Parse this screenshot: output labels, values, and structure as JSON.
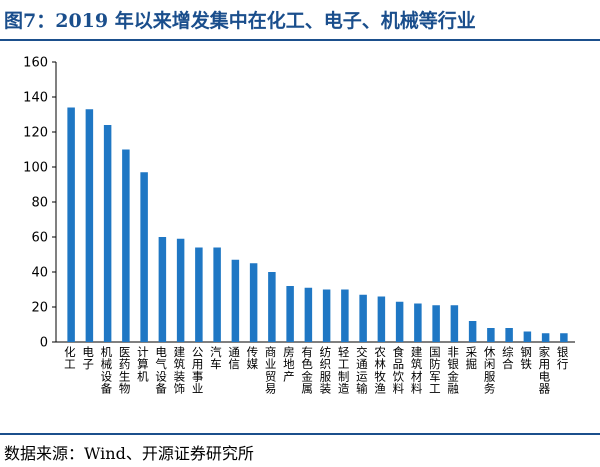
{
  "header": {
    "title": "图7：2019 年以来增发集中在化工、电子、机械等行业"
  },
  "footer": {
    "source": "数据来源：Wind、开源证券研究所"
  },
  "colors": {
    "bar": "#1f77c4",
    "title": "#1a4e8c",
    "rule": "#1b4f8c"
  },
  "chart_data": {
    "type": "bar",
    "categories": [
      "化工",
      "电子",
      "机械设备",
      "医药生物",
      "计算机",
      "电气设备",
      "建筑装饰",
      "公用事业",
      "汽车",
      "通信",
      "传媒",
      "商业贸易",
      "房地产",
      "有色金属",
      "纺织服装",
      "轻工制造",
      "交通运输",
      "农林牧渔",
      "食品饮料",
      "建筑材料",
      "国防军工",
      "非银金融",
      "采掘",
      "休闲服务",
      "综合",
      "钢铁",
      "家用电器",
      "银行"
    ],
    "values": [
      134,
      133,
      124,
      110,
      97,
      60,
      59,
      54,
      54,
      47,
      45,
      40,
      32,
      31,
      30,
      30,
      27,
      26,
      23,
      22,
      21,
      21,
      12,
      8,
      8,
      6,
      5,
      5
    ],
    "yticks": [
      0,
      20,
      40,
      60,
      80,
      100,
      120,
      140,
      160
    ],
    "ylim": [
      0,
      160
    ],
    "title": "",
    "xlabel": "",
    "ylabel": "",
    "grid": false,
    "legend": "none"
  }
}
